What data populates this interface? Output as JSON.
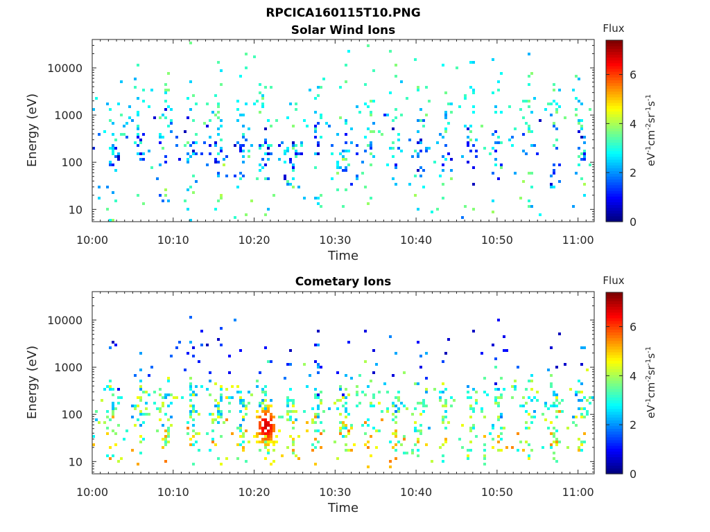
{
  "figure": {
    "title": "RPCICA160115T10.PNG"
  },
  "chart_data": [
    {
      "type": "heatmap",
      "title": "Solar Wind Ions",
      "xlabel": "Time",
      "ylabel": "Energy (eV)",
      "x_ticks": [
        "10:00",
        "10:10",
        "10:20",
        "10:30",
        "10:40",
        "10:50",
        "11:00"
      ],
      "x_range_minutes": [
        0,
        62
      ],
      "y_scale": "log",
      "y_ticks": [
        10,
        100,
        1000,
        10000
      ],
      "y_range": [
        5.5,
        40000
      ],
      "colorbar": {
        "label_top": "Flux",
        "label": "eV-1cm-2sr-1s-1",
        "range": [
          0,
          7.4
        ],
        "ticks": [
          0,
          2,
          4,
          6
        ],
        "colormap": "jet"
      },
      "bursts_minutes": [
        2.5,
        5.8,
        9.0,
        12.3,
        15.6,
        18.5,
        21.4,
        24.6,
        27.8,
        31.2,
        34.3,
        37.4,
        40.5,
        43.4,
        46.8,
        50.0,
        53.9,
        57.1,
        60.5
      ],
      "bands": [
        {
          "name": "scattered-high",
          "log_center": 3.1,
          "log_spread": 0.55,
          "density": 0.06,
          "vmin": 2.2,
          "vmax": 3.8
        },
        {
          "name": "mid",
          "log_center": 2.35,
          "log_spread": 0.35,
          "density": 0.1,
          "vmin": 0.4,
          "vmax": 3.4
        },
        {
          "name": "low",
          "log_center": 1.35,
          "log_spread": 0.4,
          "density": 0.04,
          "vmin": 1.5,
          "vmax": 4.2
        }
      ],
      "seed": 11
    },
    {
      "type": "heatmap",
      "title": "Cometary Ions",
      "xlabel": "Time",
      "ylabel": "Energy (eV)",
      "x_ticks": [
        "10:00",
        "10:10",
        "10:20",
        "10:30",
        "10:40",
        "10:50",
        "11:00"
      ],
      "x_range_minutes": [
        0,
        62
      ],
      "y_scale": "log",
      "y_ticks": [
        10,
        100,
        1000,
        10000
      ],
      "y_range": [
        5.5,
        40000
      ],
      "colorbar": {
        "label_top": "Flux",
        "label": "eV-1cm-2sr-1s-1",
        "range": [
          0,
          7.4
        ],
        "ticks": [
          0,
          2,
          4,
          6
        ],
        "colormap": "jet"
      },
      "bursts_minutes": [
        2.5,
        5.8,
        9.0,
        12.3,
        15.6,
        18.5,
        21.4,
        24.6,
        27.8,
        31.2,
        34.3,
        37.4,
        40.5,
        43.4,
        46.8,
        50.0,
        53.9,
        57.1,
        60.5
      ],
      "bands": [
        {
          "name": "scattered-high",
          "log_center": 3.2,
          "log_spread": 0.45,
          "density": 0.03,
          "vmin": 0.3,
          "vmax": 2.2
        },
        {
          "name": "mid",
          "log_center": 2.2,
          "log_spread": 0.3,
          "density": 0.22,
          "vmin": 2.0,
          "vmax": 4.6
        },
        {
          "name": "low",
          "log_center": 1.45,
          "log_spread": 0.3,
          "density": 0.12,
          "vmin": 2.8,
          "vmax": 5.6
        }
      ],
      "hotspot": {
        "minute": 21.5,
        "log_energy": 1.75,
        "peak": 6.8
      },
      "seed": 37
    }
  ]
}
